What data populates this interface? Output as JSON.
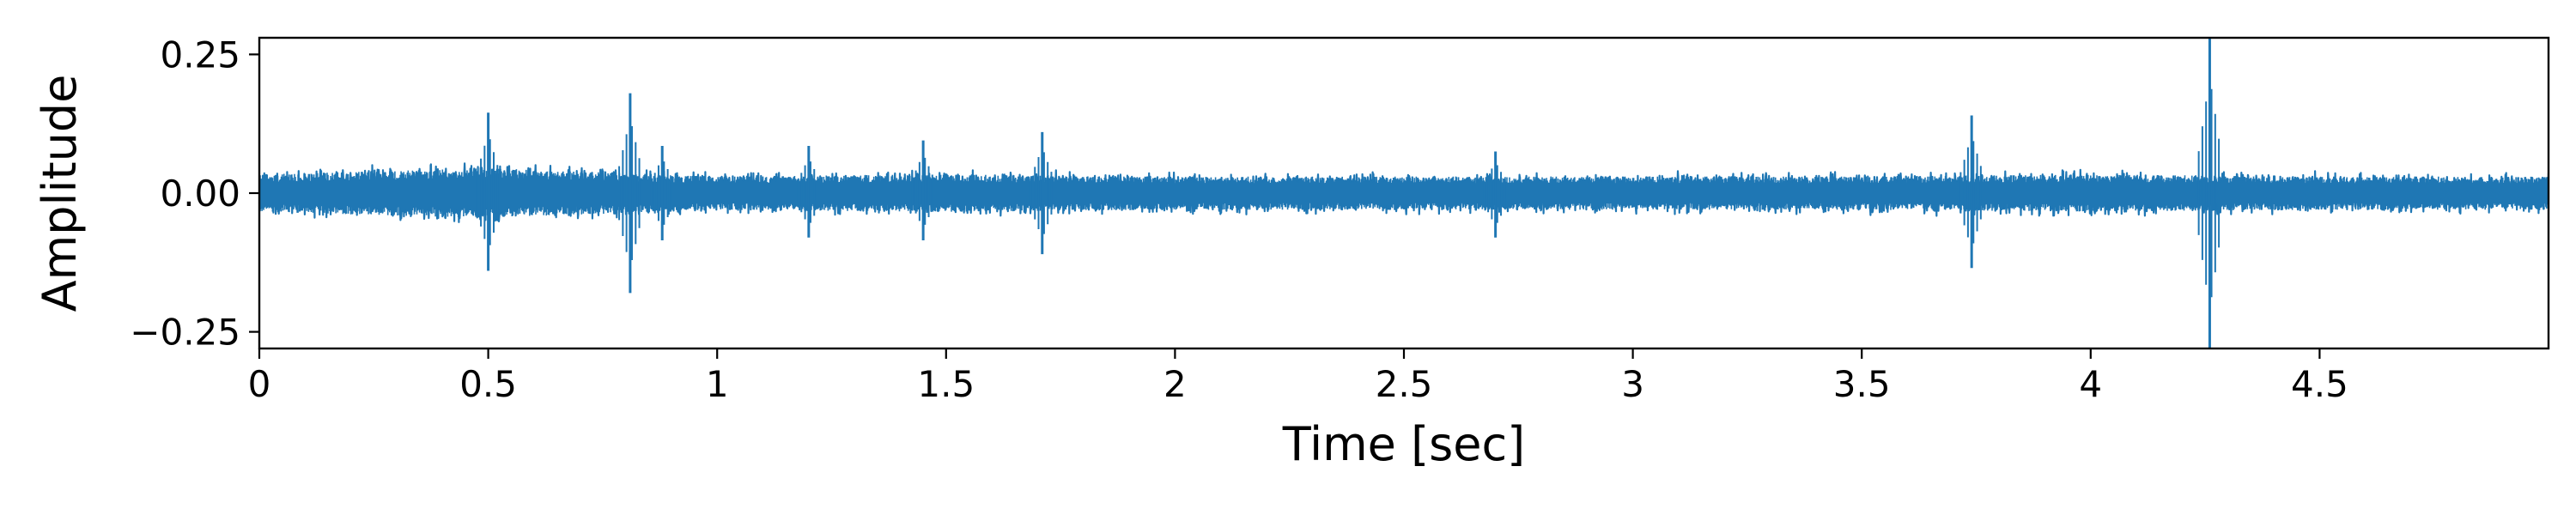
{
  "chart_data": {
    "type": "line",
    "title": "",
    "xlabel": "Time [sec]",
    "ylabel": "Amplitude",
    "xlim": [
      0,
      5
    ],
    "ylim": [
      -0.28,
      0.28
    ],
    "xticks": [
      0,
      0.5,
      1,
      1.5,
      2,
      2.5,
      3,
      3.5,
      4,
      4.5
    ],
    "xtick_labels": [
      "0",
      "0.5",
      "1",
      "1.5",
      "2",
      "2.5",
      "3",
      "3.5",
      "4",
      "4.5"
    ],
    "yticks": [
      0.25,
      0,
      -0.25
    ],
    "ytick_labels": [
      "0.25",
      "0.00",
      "−0.25"
    ],
    "grid": false,
    "legend": "none",
    "series": [
      {
        "color": "#1f77b4",
        "noise_amplitude": 0.04,
        "envelope": [
          {
            "t": 0.0,
            "amp": 0.045
          },
          {
            "t": 0.5,
            "amp": 0.06
          },
          {
            "t": 1.0,
            "amp": 0.04
          },
          {
            "t": 1.5,
            "amp": 0.045
          },
          {
            "t": 2.0,
            "amp": 0.04
          },
          {
            "t": 2.5,
            "amp": 0.04
          },
          {
            "t": 3.0,
            "amp": 0.04
          },
          {
            "t": 3.5,
            "amp": 0.04
          },
          {
            "t": 4.0,
            "amp": 0.045
          },
          {
            "t": 4.5,
            "amp": 0.04
          },
          {
            "t": 5.0,
            "amp": 0.04
          }
        ],
        "peaks": [
          {
            "t": 0.5,
            "max": 0.145,
            "min": -0.14
          },
          {
            "t": 0.81,
            "max": 0.18,
            "min": -0.18
          },
          {
            "t": 0.88,
            "max": 0.085,
            "min": -0.085
          },
          {
            "t": 1.2,
            "max": 0.085,
            "min": -0.08
          },
          {
            "t": 1.45,
            "max": 0.095,
            "min": -0.085
          },
          {
            "t": 1.71,
            "max": 0.11,
            "min": -0.11
          },
          {
            "t": 2.7,
            "max": 0.075,
            "min": -0.08
          },
          {
            "t": 3.74,
            "max": 0.14,
            "min": -0.135
          },
          {
            "t": 4.26,
            "max": 0.28,
            "min": -0.28
          }
        ]
      }
    ]
  }
}
